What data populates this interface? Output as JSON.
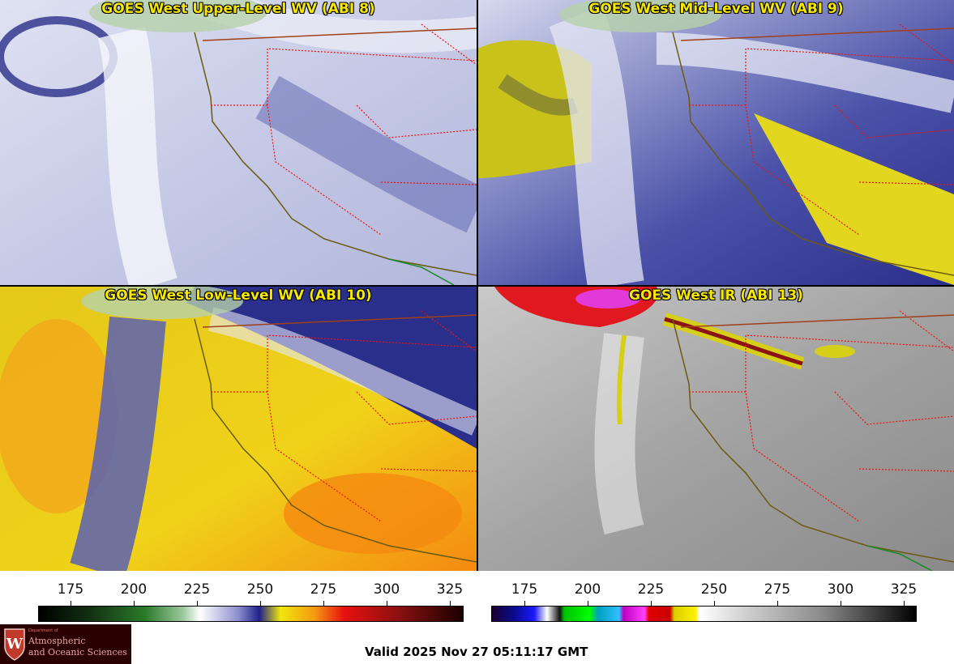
{
  "panels": [
    {
      "title": "GOES West Upper-Level WV (ABI 8)"
    },
    {
      "title": "GOES West Mid-Level WV (ABI 9)"
    },
    {
      "title": "GOES West Low-Level WV (ABI 10)"
    },
    {
      "title": "GOES West IR (ABI 13)"
    }
  ],
  "wv_scale": {
    "ticks": [
      "175",
      "200",
      "225",
      "250",
      "275",
      "300",
      "325"
    ]
  },
  "ir_scale": {
    "ticks": [
      "175",
      "200",
      "225",
      "250",
      "275",
      "300",
      "325"
    ]
  },
  "logo": {
    "line1": "Department of",
    "line2": "Atmospheric",
    "line3": "and Oceanic Sciences",
    "seal": "W"
  },
  "valid_time": "Valid 2025 Nov 27 05:11:17 GMT",
  "colors": {
    "title": "#f6e800",
    "state_border": "#e11",
    "coast": "#6b5a10"
  }
}
